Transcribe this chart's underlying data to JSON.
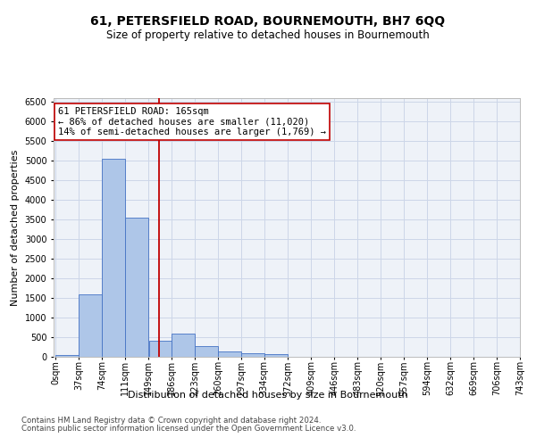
{
  "title": "61, PETERSFIELD ROAD, BOURNEMOUTH, BH7 6QQ",
  "subtitle": "Size of property relative to detached houses in Bournemouth",
  "xlabel": "Distribution of detached houses by size in Bournemouth",
  "ylabel": "Number of detached properties",
  "footnote1": "Contains HM Land Registry data © Crown copyright and database right 2024.",
  "footnote2": "Contains public sector information licensed under the Open Government Licence v3.0.",
  "annotation_line1": "61 PETERSFIELD ROAD: 165sqm",
  "annotation_line2": "← 86% of detached houses are smaller (11,020)",
  "annotation_line3": "14% of semi-detached houses are larger (1,769) →",
  "property_size": 165,
  "bar_left_edges": [
    0,
    37,
    74,
    111,
    149,
    186,
    223,
    260,
    297,
    334,
    372,
    409,
    446,
    483,
    520,
    557,
    594,
    632,
    669,
    706
  ],
  "bar_widths": [
    37,
    37,
    37,
    38,
    37,
    37,
    37,
    37,
    37,
    38,
    37,
    37,
    37,
    37,
    37,
    37,
    37,
    37,
    37,
    37
  ],
  "bar_heights": [
    50,
    1600,
    5050,
    3550,
    420,
    590,
    270,
    130,
    100,
    70,
    0,
    0,
    0,
    0,
    0,
    0,
    0,
    0,
    0,
    0
  ],
  "tick_labels": [
    "0sqm",
    "37sqm",
    "74sqm",
    "111sqm",
    "149sqm",
    "186sqm",
    "223sqm",
    "260sqm",
    "297sqm",
    "334sqm",
    "372sqm",
    "409sqm",
    "446sqm",
    "483sqm",
    "520sqm",
    "557sqm",
    "594sqm",
    "632sqm",
    "669sqm",
    "706sqm",
    "743sqm"
  ],
  "ylim": [
    0,
    6600
  ],
  "yticks": [
    0,
    500,
    1000,
    1500,
    2000,
    2500,
    3000,
    3500,
    4000,
    4500,
    5000,
    5500,
    6000,
    6500
  ],
  "bar_color": "#aec6e8",
  "bar_edge_color": "#4472c4",
  "highlight_line_color": "#c00000",
  "annotation_box_color": "#c00000",
  "grid_color": "#ccd6e8",
  "background_color": "#eef2f8",
  "title_fontsize": 10,
  "subtitle_fontsize": 8.5,
  "axis_label_fontsize": 8,
  "tick_fontsize": 7,
  "annotation_fontsize": 7.5,
  "footnote_fontsize": 6.2
}
